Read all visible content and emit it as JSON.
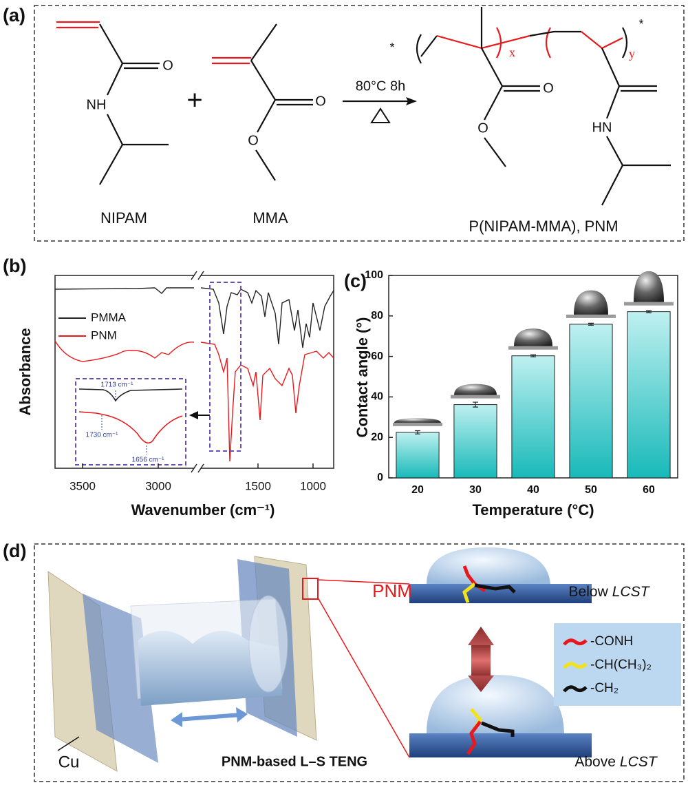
{
  "panel_a": {
    "label": "(a)",
    "monomers": [
      "NIPAM",
      "MMA"
    ],
    "product": "P(NIPAM-MMA), PNM",
    "condition": "80°C 8h",
    "plus": "+",
    "atoms": [
      "O",
      "NH",
      "O",
      "O",
      "O",
      "O",
      "HN"
    ],
    "subscripts": [
      "x",
      "y"
    ],
    "end_groups": [
      "*",
      "*"
    ]
  },
  "panel_b": {
    "label": "(b)",
    "xlabel": "Wavenumber (cm⁻¹)",
    "ylabel": "Absorbance",
    "xticks": [
      3500,
      3000,
      1500,
      1000
    ],
    "legend": [
      {
        "name": "PMMA",
        "color": "#222222"
      },
      {
        "name": "PNM",
        "color": "#e8191c"
      }
    ],
    "annotations": [
      "1713 cm⁻¹",
      "1730 cm⁻¹",
      "1656 cm⁻¹"
    ]
  },
  "chart_data": {
    "type": "bar",
    "label": "(c)",
    "xlabel": "Temperature (°C)",
    "ylabel": "Contact angle (°)",
    "categories": [
      "20",
      "30",
      "40",
      "50",
      "60"
    ],
    "values": [
      22.5,
      36.2,
      60.3,
      75.9,
      82.1
    ],
    "errors": [
      0.8,
      1.2,
      0.5,
      0.5,
      0.5
    ],
    "color": "#2ec4c4",
    "ylim": [
      0,
      100
    ],
    "yticks": [
      0,
      20,
      40,
      60,
      80,
      100
    ]
  },
  "panel_d": {
    "label": "(d)",
    "electrode": "Cu",
    "device": "PNM-based L–S TENG",
    "material": "PNM",
    "states": [
      {
        "prefix": "Below",
        "term": "LCST"
      },
      {
        "prefix": "Above",
        "term": "LCST"
      }
    ],
    "legend": [
      {
        "name": "-CONH",
        "color": "#e8191c"
      },
      {
        "name": "-CH(CH₃)₂",
        "color": "#f2e21b"
      },
      {
        "name": "-CH₂",
        "color": "#111111"
      }
    ]
  }
}
